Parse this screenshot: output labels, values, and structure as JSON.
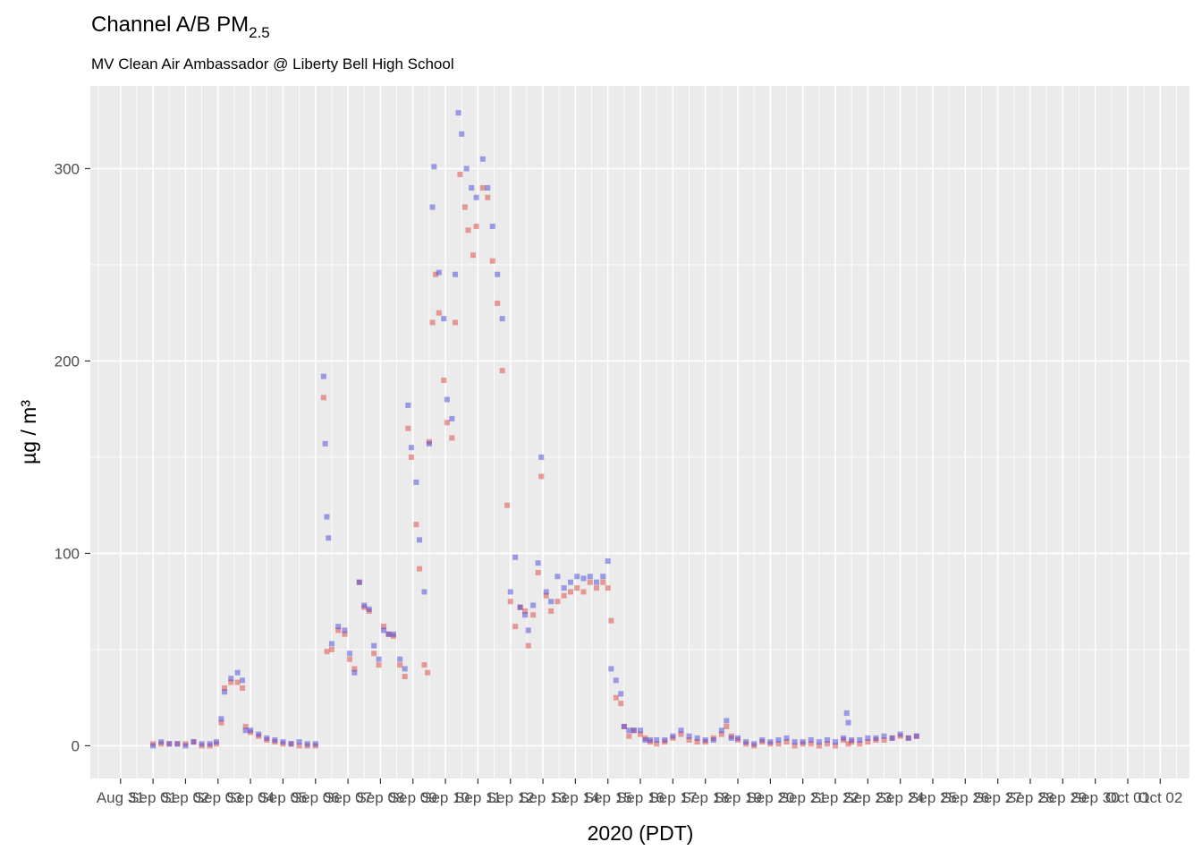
{
  "chart_data": {
    "type": "scatter",
    "title": "Channel A/B PM",
    "title_subscript": "2.5",
    "subtitle": "MV Clean Air Ambassador @ Liberty Bell High School",
    "xlabel": "2020 (PDT)",
    "ylabel": "µg / m³",
    "ylim": [
      -17,
      343
    ],
    "yticks": [
      0,
      100,
      200,
      300
    ],
    "x_range_days": [
      -1.93,
      31.9
    ],
    "grid": true,
    "background_color": "#EBEBEB",
    "grid_color": "#FFFFFF",
    "xtick_labels": [
      "Aug 31",
      "Sep 01",
      "Sep 02",
      "Sep 03",
      "Sep 04",
      "Sep 05",
      "Sep 06",
      "Sep 07",
      "Sep 08",
      "Sep 09",
      "Sep 10",
      "Sep 11",
      "Sep 12",
      "Sep 13",
      "Sep 14",
      "Sep 15",
      "Sep 16",
      "Sep 17",
      "Sep 18",
      "Sep 19",
      "Sep 20",
      "Sep 21",
      "Sep 22",
      "Sep 23",
      "Sep 24",
      "Sep 25",
      "Sep 26",
      "Sep 27",
      "Sep 28",
      "Sep 29",
      "Sep 30",
      "Oct 01",
      "Oct 02"
    ],
    "xtick_start_day": -1,
    "series": [
      {
        "color": "#E0443C",
        "points": [
          [
            0,
            1
          ],
          [
            0.5,
            1
          ],
          [
            1,
            1
          ],
          [
            1.5,
            1
          ],
          [
            2,
            1
          ],
          [
            2.5,
            2
          ],
          [
            3,
            0
          ],
          [
            3.5,
            0
          ],
          [
            3.9,
            1
          ],
          [
            4.2,
            12
          ],
          [
            4.4,
            30
          ],
          [
            4.8,
            33
          ],
          [
            5.2,
            33
          ],
          [
            5.5,
            30
          ],
          [
            5.7,
            10
          ],
          [
            6.0,
            7
          ],
          [
            6.5,
            5
          ],
          [
            7.0,
            3
          ],
          [
            7.5,
            2
          ],
          [
            8.0,
            1
          ],
          [
            8.5,
            1
          ],
          [
            9.0,
            0
          ],
          [
            9.5,
            0
          ],
          [
            10.0,
            0
          ],
          [
            10.5,
            181
          ],
          [
            10.7,
            49
          ],
          [
            11.0,
            50
          ],
          [
            11.4,
            60
          ],
          [
            11.8,
            58
          ],
          [
            12.1,
            45
          ],
          [
            12.4,
            40
          ],
          [
            12.7,
            85
          ],
          [
            13.0,
            72
          ],
          [
            13.3,
            70
          ],
          [
            13.6,
            48
          ],
          [
            13.9,
            42
          ],
          [
            14.2,
            62
          ],
          [
            14.5,
            58
          ],
          [
            14.8,
            57
          ],
          [
            15.2,
            42
          ],
          [
            15.5,
            36
          ],
          [
            15.7,
            165
          ],
          [
            15.9,
            150
          ],
          [
            16.2,
            115
          ],
          [
            16.4,
            92
          ],
          [
            16.7,
            42
          ],
          [
            16.9,
            38
          ],
          [
            17.0,
            158
          ],
          [
            17.2,
            220
          ],
          [
            17.4,
            245
          ],
          [
            17.6,
            225
          ],
          [
            17.9,
            190
          ],
          [
            18.1,
            168
          ],
          [
            18.4,
            160
          ],
          [
            18.6,
            220
          ],
          [
            18.9,
            297
          ],
          [
            19.2,
            280
          ],
          [
            19.4,
            268
          ],
          [
            19.7,
            255
          ],
          [
            19.9,
            270
          ],
          [
            20.3,
            290
          ],
          [
            20.6,
            285
          ],
          [
            20.9,
            252
          ],
          [
            21.2,
            230
          ],
          [
            21.5,
            195
          ],
          [
            21.8,
            125
          ],
          [
            22.0,
            75
          ],
          [
            22.3,
            62
          ],
          [
            22.6,
            72
          ],
          [
            22.9,
            70
          ],
          [
            23.1,
            52
          ],
          [
            23.4,
            68
          ],
          [
            23.7,
            90
          ],
          [
            23.9,
            140
          ],
          [
            24.2,
            78
          ],
          [
            24.5,
            70
          ],
          [
            24.9,
            75
          ],
          [
            25.3,
            78
          ],
          [
            25.7,
            80
          ],
          [
            26.1,
            82
          ],
          [
            26.5,
            80
          ],
          [
            26.9,
            85
          ],
          [
            27.3,
            82
          ],
          [
            27.7,
            85
          ],
          [
            28.0,
            82
          ],
          [
            28.2,
            65
          ],
          [
            28.5,
            25
          ],
          [
            28.8,
            22
          ],
          [
            29.0,
            10
          ],
          [
            29.3,
            5
          ],
          [
            29.6,
            8
          ],
          [
            30.0,
            6
          ],
          [
            30.3,
            4
          ],
          [
            30.6,
            2
          ],
          [
            31.0,
            1
          ],
          [
            31.5,
            2
          ],
          [
            32.0,
            4
          ],
          [
            32.5,
            6
          ],
          [
            33.0,
            3
          ],
          [
            33.5,
            2
          ],
          [
            34.0,
            2
          ],
          [
            34.5,
            4
          ],
          [
            35.0,
            6
          ],
          [
            35.3,
            10
          ],
          [
            35.6,
            5
          ],
          [
            36.0,
            3
          ],
          [
            36.5,
            1
          ],
          [
            37.0,
            0
          ],
          [
            37.5,
            2
          ],
          [
            38.0,
            1
          ],
          [
            38.5,
            1
          ],
          [
            39.0,
            2
          ],
          [
            39.5,
            0
          ],
          [
            40.0,
            1
          ],
          [
            40.5,
            1
          ],
          [
            41.0,
            0
          ],
          [
            41.5,
            1
          ],
          [
            42.0,
            0
          ],
          [
            42.5,
            3
          ],
          [
            42.8,
            1
          ],
          [
            43.0,
            2
          ],
          [
            43.5,
            1
          ],
          [
            44.0,
            2
          ],
          [
            44.5,
            3
          ],
          [
            45.0,
            3
          ],
          [
            45.5,
            4
          ],
          [
            46.0,
            5
          ],
          [
            46.5,
            4
          ],
          [
            47.0,
            5
          ]
        ]
      },
      {
        "color": "#4646E0",
        "points": [
          [
            0,
            0
          ],
          [
            0.5,
            2
          ],
          [
            1,
            1
          ],
          [
            1.5,
            1
          ],
          [
            2,
            0
          ],
          [
            2.5,
            2
          ],
          [
            3,
            1
          ],
          [
            3.5,
            1
          ],
          [
            3.9,
            2
          ],
          [
            4.2,
            14
          ],
          [
            4.4,
            28
          ],
          [
            4.8,
            35
          ],
          [
            5.2,
            38
          ],
          [
            5.5,
            34
          ],
          [
            5.7,
            8
          ],
          [
            6.0,
            8
          ],
          [
            6.5,
            6
          ],
          [
            7.0,
            4
          ],
          [
            7.5,
            3
          ],
          [
            8.0,
            2
          ],
          [
            8.5,
            1
          ],
          [
            9.0,
            2
          ],
          [
            9.5,
            1
          ],
          [
            10.0,
            1
          ],
          [
            10.5,
            192
          ],
          [
            10.6,
            157
          ],
          [
            10.7,
            119
          ],
          [
            10.8,
            108
          ],
          [
            11.0,
            53
          ],
          [
            11.4,
            62
          ],
          [
            11.8,
            60
          ],
          [
            12.1,
            48
          ],
          [
            12.4,
            38
          ],
          [
            12.7,
            85
          ],
          [
            13.0,
            73
          ],
          [
            13.3,
            71
          ],
          [
            13.6,
            52
          ],
          [
            13.9,
            45
          ],
          [
            14.2,
            60
          ],
          [
            14.5,
            58
          ],
          [
            14.8,
            58
          ],
          [
            15.2,
            45
          ],
          [
            15.5,
            40
          ],
          [
            15.7,
            177
          ],
          [
            15.9,
            155
          ],
          [
            16.2,
            137
          ],
          [
            16.4,
            107
          ],
          [
            16.7,
            80
          ],
          [
            17.0,
            157
          ],
          [
            17.2,
            280
          ],
          [
            17.3,
            301
          ],
          [
            17.6,
            246
          ],
          [
            17.9,
            222
          ],
          [
            18.1,
            180
          ],
          [
            18.4,
            170
          ],
          [
            18.6,
            245
          ],
          [
            18.8,
            329
          ],
          [
            19.0,
            318
          ],
          [
            19.3,
            300
          ],
          [
            19.6,
            290
          ],
          [
            19.9,
            285
          ],
          [
            20.3,
            305
          ],
          [
            20.6,
            290
          ],
          [
            20.9,
            270
          ],
          [
            21.2,
            245
          ],
          [
            21.5,
            222
          ],
          [
            22.0,
            80
          ],
          [
            22.3,
            98
          ],
          [
            22.6,
            72
          ],
          [
            22.9,
            68
          ],
          [
            23.1,
            60
          ],
          [
            23.4,
            73
          ],
          [
            23.7,
            95
          ],
          [
            23.9,
            150
          ],
          [
            24.2,
            80
          ],
          [
            24.5,
            75
          ],
          [
            24.9,
            88
          ],
          [
            25.3,
            82
          ],
          [
            25.7,
            85
          ],
          [
            26.1,
            88
          ],
          [
            26.5,
            87
          ],
          [
            26.9,
            88
          ],
          [
            27.3,
            85
          ],
          [
            27.7,
            88
          ],
          [
            28.0,
            96
          ],
          [
            28.2,
            40
          ],
          [
            28.5,
            34
          ],
          [
            28.8,
            27
          ],
          [
            29.0,
            10
          ],
          [
            29.3,
            8
          ],
          [
            29.6,
            8
          ],
          [
            30.0,
            8
          ],
          [
            30.3,
            3
          ],
          [
            30.6,
            3
          ],
          [
            31.0,
            3
          ],
          [
            31.5,
            3
          ],
          [
            32.0,
            5
          ],
          [
            32.5,
            8
          ],
          [
            33.0,
            5
          ],
          [
            33.5,
            4
          ],
          [
            34.0,
            3
          ],
          [
            34.5,
            3
          ],
          [
            35.0,
            8
          ],
          [
            35.3,
            13
          ],
          [
            35.6,
            4
          ],
          [
            36.0,
            4
          ],
          [
            36.5,
            2
          ],
          [
            37.0,
            1
          ],
          [
            37.5,
            3
          ],
          [
            38.0,
            2
          ],
          [
            38.5,
            3
          ],
          [
            39.0,
            4
          ],
          [
            39.5,
            2
          ],
          [
            40.0,
            2
          ],
          [
            40.5,
            3
          ],
          [
            41.0,
            2
          ],
          [
            41.5,
            3
          ],
          [
            42.0,
            2
          ],
          [
            42.5,
            4
          ],
          [
            42.7,
            17
          ],
          [
            42.8,
            12
          ],
          [
            43.0,
            3
          ],
          [
            43.5,
            3
          ],
          [
            44.0,
            4
          ],
          [
            44.5,
            4
          ],
          [
            45.0,
            5
          ],
          [
            45.5,
            4
          ],
          [
            46.0,
            6
          ],
          [
            46.5,
            4
          ],
          [
            47.0,
            5
          ]
        ]
      }
    ]
  }
}
